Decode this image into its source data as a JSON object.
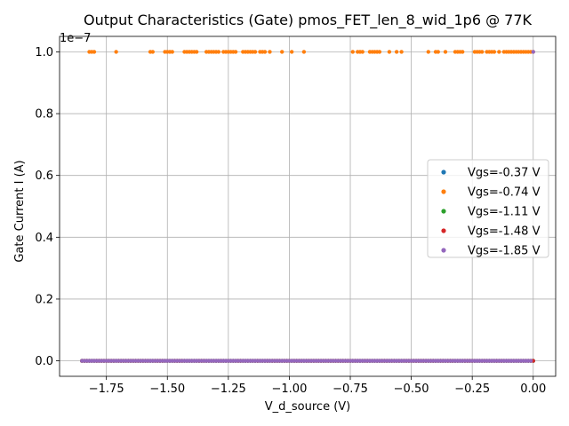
{
  "chart_data": {
    "type": "scatter",
    "title": "Output Characteristics (Gate) pmos_FET_len_8_wid_1p6 @ 77K",
    "xlabel": "V_d_source (V)",
    "ylabel": "Gate Current I (A)",
    "y_offset_text": "1e−7",
    "xlim": [
      -1.942,
      0.092
    ],
    "ylim": [
      -5e-09,
      1.05e-07
    ],
    "x_ticks": [
      -1.75,
      -1.5,
      -1.25,
      -1.0,
      -0.75,
      -0.5,
      -0.25,
      0.0
    ],
    "x_tick_labels": [
      "−1.75",
      "−1.50",
      "−1.25",
      "−1.00",
      "−0.75",
      "−0.50",
      "−0.25",
      "0.00"
    ],
    "y_ticks": [
      0,
      2e-08,
      4e-08,
      6e-08,
      8e-08,
      1e-07
    ],
    "y_tick_labels": [
      "0.0",
      "0.2",
      "0.4",
      "0.6",
      "0.8",
      "1.0"
    ],
    "grid": true,
    "legend_position": "center-right",
    "x_range": [
      -1.85,
      0.0
    ],
    "series": [
      {
        "name": "Vgs=-0.37 V",
        "color": "#1f77b4",
        "baseline": 0,
        "spike_x": []
      },
      {
        "name": "Vgs=-0.74 V",
        "color": "#ff7f0e",
        "baseline": 0,
        "spike_x": [
          -1.82,
          -1.81,
          -1.8,
          -1.71,
          -1.57,
          -1.56,
          -1.51,
          -1.5,
          -1.49,
          -1.48,
          -1.43,
          -1.42,
          -1.41,
          -1.4,
          -1.39,
          -1.38,
          -1.34,
          -1.33,
          -1.32,
          -1.31,
          -1.3,
          -1.29,
          -1.27,
          -1.26,
          -1.25,
          -1.24,
          -1.23,
          -1.22,
          -1.19,
          -1.18,
          -1.17,
          -1.16,
          -1.15,
          -1.14,
          -1.12,
          -1.11,
          -1.1,
          -1.08,
          -1.03,
          -0.99,
          -0.94,
          -0.74,
          -0.72,
          -0.71,
          -0.7,
          -0.67,
          -0.66,
          -0.65,
          -0.64,
          -0.63,
          -0.59,
          -0.56,
          -0.54,
          -0.43,
          -0.4,
          -0.39,
          -0.36,
          -0.32,
          -0.31,
          -0.3,
          -0.29,
          -0.24,
          -0.23,
          -0.22,
          -0.21,
          -0.19,
          -0.18,
          -0.17,
          -0.16,
          -0.14,
          -0.12,
          -0.11,
          -0.1,
          -0.09,
          -0.08,
          -0.07,
          -0.06,
          -0.05,
          -0.04,
          -0.03,
          -0.02,
          -0.01,
          0.0
        ]
      },
      {
        "name": "Vgs=-1.11 V",
        "color": "#2ca02c",
        "baseline": 0,
        "spike_x": []
      },
      {
        "name": "Vgs=-1.48 V",
        "color": "#d62728",
        "baseline": 0,
        "spike_x": []
      },
      {
        "name": "Vgs=-1.85 V",
        "color": "#9467bd",
        "baseline": 0,
        "spike_x": [
          0.0
        ]
      }
    ]
  }
}
